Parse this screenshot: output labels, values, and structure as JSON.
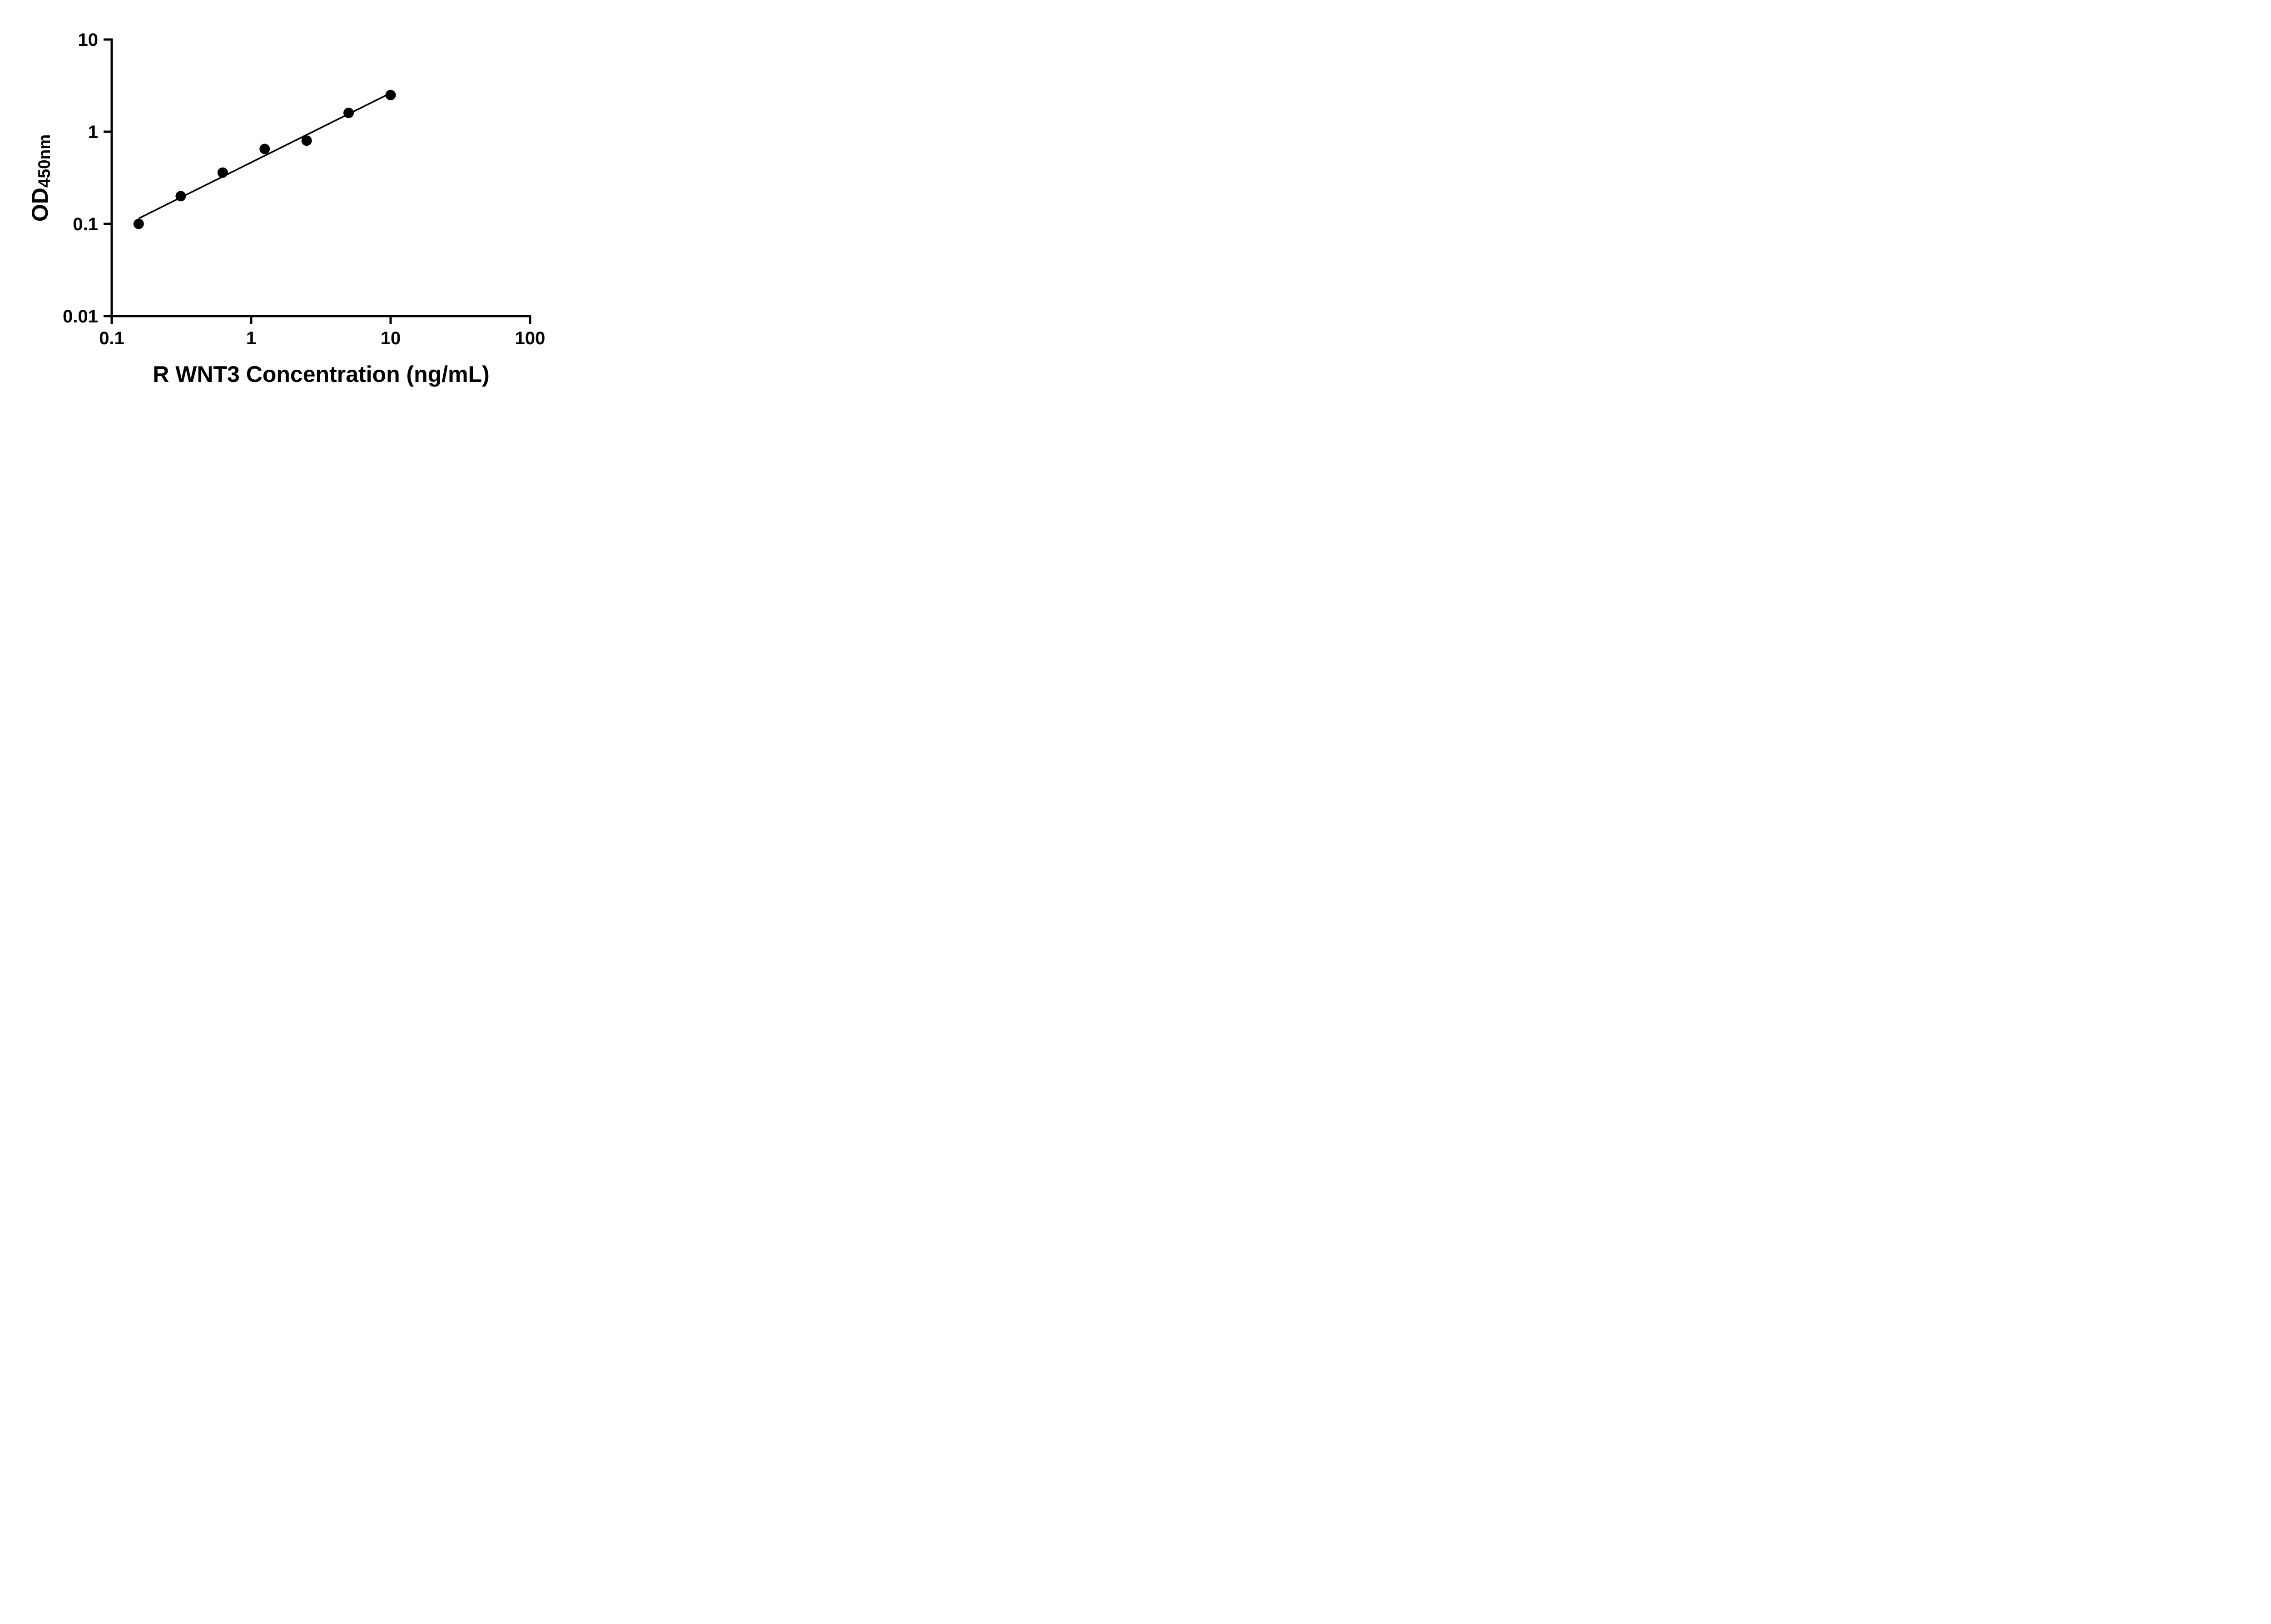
{
  "chart_data": {
    "type": "scatter",
    "title": "",
    "xlabel": "R WNT3 Concentration (ng/mL)",
    "ylabel_main": "OD",
    "ylabel_sub": "450nm",
    "x_scale": "log",
    "y_scale": "log",
    "xlim": [
      0.1,
      100
    ],
    "ylim": [
      0.01,
      10
    ],
    "grid": false,
    "legend": "none",
    "x_ticks": [
      {
        "value": 0.1,
        "label": "0.1"
      },
      {
        "value": 1,
        "label": "1"
      },
      {
        "value": 10,
        "label": "10"
      },
      {
        "value": 100,
        "label": "100"
      }
    ],
    "y_ticks": [
      {
        "value": 0.01,
        "label": "0.01"
      },
      {
        "value": 0.1,
        "label": "0.1"
      },
      {
        "value": 1,
        "label": "1"
      },
      {
        "value": 10,
        "label": "10"
      }
    ],
    "points": [
      {
        "x": 0.156,
        "y": 0.1
      },
      {
        "x": 0.3125,
        "y": 0.2
      },
      {
        "x": 0.625,
        "y": 0.36
      },
      {
        "x": 1.25,
        "y": 0.65
      },
      {
        "x": 2.5,
        "y": 0.8
      },
      {
        "x": 5,
        "y": 1.6
      },
      {
        "x": 10,
        "y": 2.5
      }
    ],
    "trendline": {
      "fit": "power-law-loglog-regression",
      "x_start": 0.156,
      "x_end": 10
    },
    "marker_color": "#000000",
    "line_color": "#000000",
    "axis_color": "#000000"
  }
}
